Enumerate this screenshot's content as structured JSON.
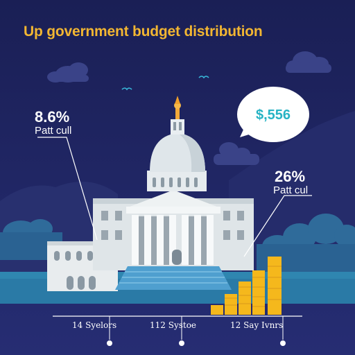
{
  "title": "Up government budget distribution",
  "callouts": {
    "left": {
      "percent": "8.6%",
      "label": "Patt cull"
    },
    "right": {
      "percent": "26%",
      "label": "Patt cul"
    },
    "bubble": {
      "amount": "$,556"
    }
  },
  "axis": {
    "labels": [
      "14 Syelors",
      "112 Systoe",
      "12 Say Ivnrs"
    ]
  },
  "colors": {
    "background": "#1b2056",
    "title": "#f2b632",
    "bubble_text": "#27b3c4",
    "coins": "#f5b81c"
  },
  "icons": [
    "cloud-icon",
    "bird-icon",
    "capitol-building-icon",
    "coin-stack-icon",
    "speech-bubble-icon"
  ]
}
